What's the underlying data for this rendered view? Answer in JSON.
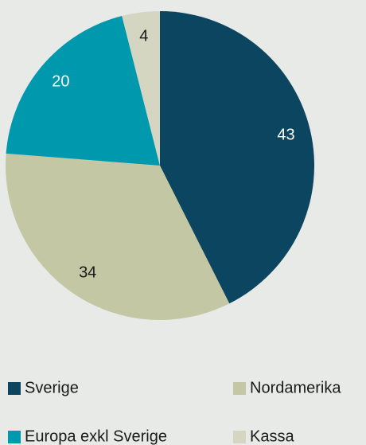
{
  "chart_data": {
    "type": "pie",
    "categories": [
      "Sverige",
      "Nordamerika",
      "Europa exkl Sverige",
      "Kassa"
    ],
    "values": [
      43,
      34,
      20,
      4
    ],
    "colors": [
      "#0b4560",
      "#c4c7a3",
      "#0098ad",
      "#d4d6c2"
    ],
    "label_colors": [
      "#ffffff",
      "#1a1a1a",
      "#ffffff",
      "#1a1a1a"
    ],
    "start_angle": 0,
    "direction": "clockwise"
  }
}
